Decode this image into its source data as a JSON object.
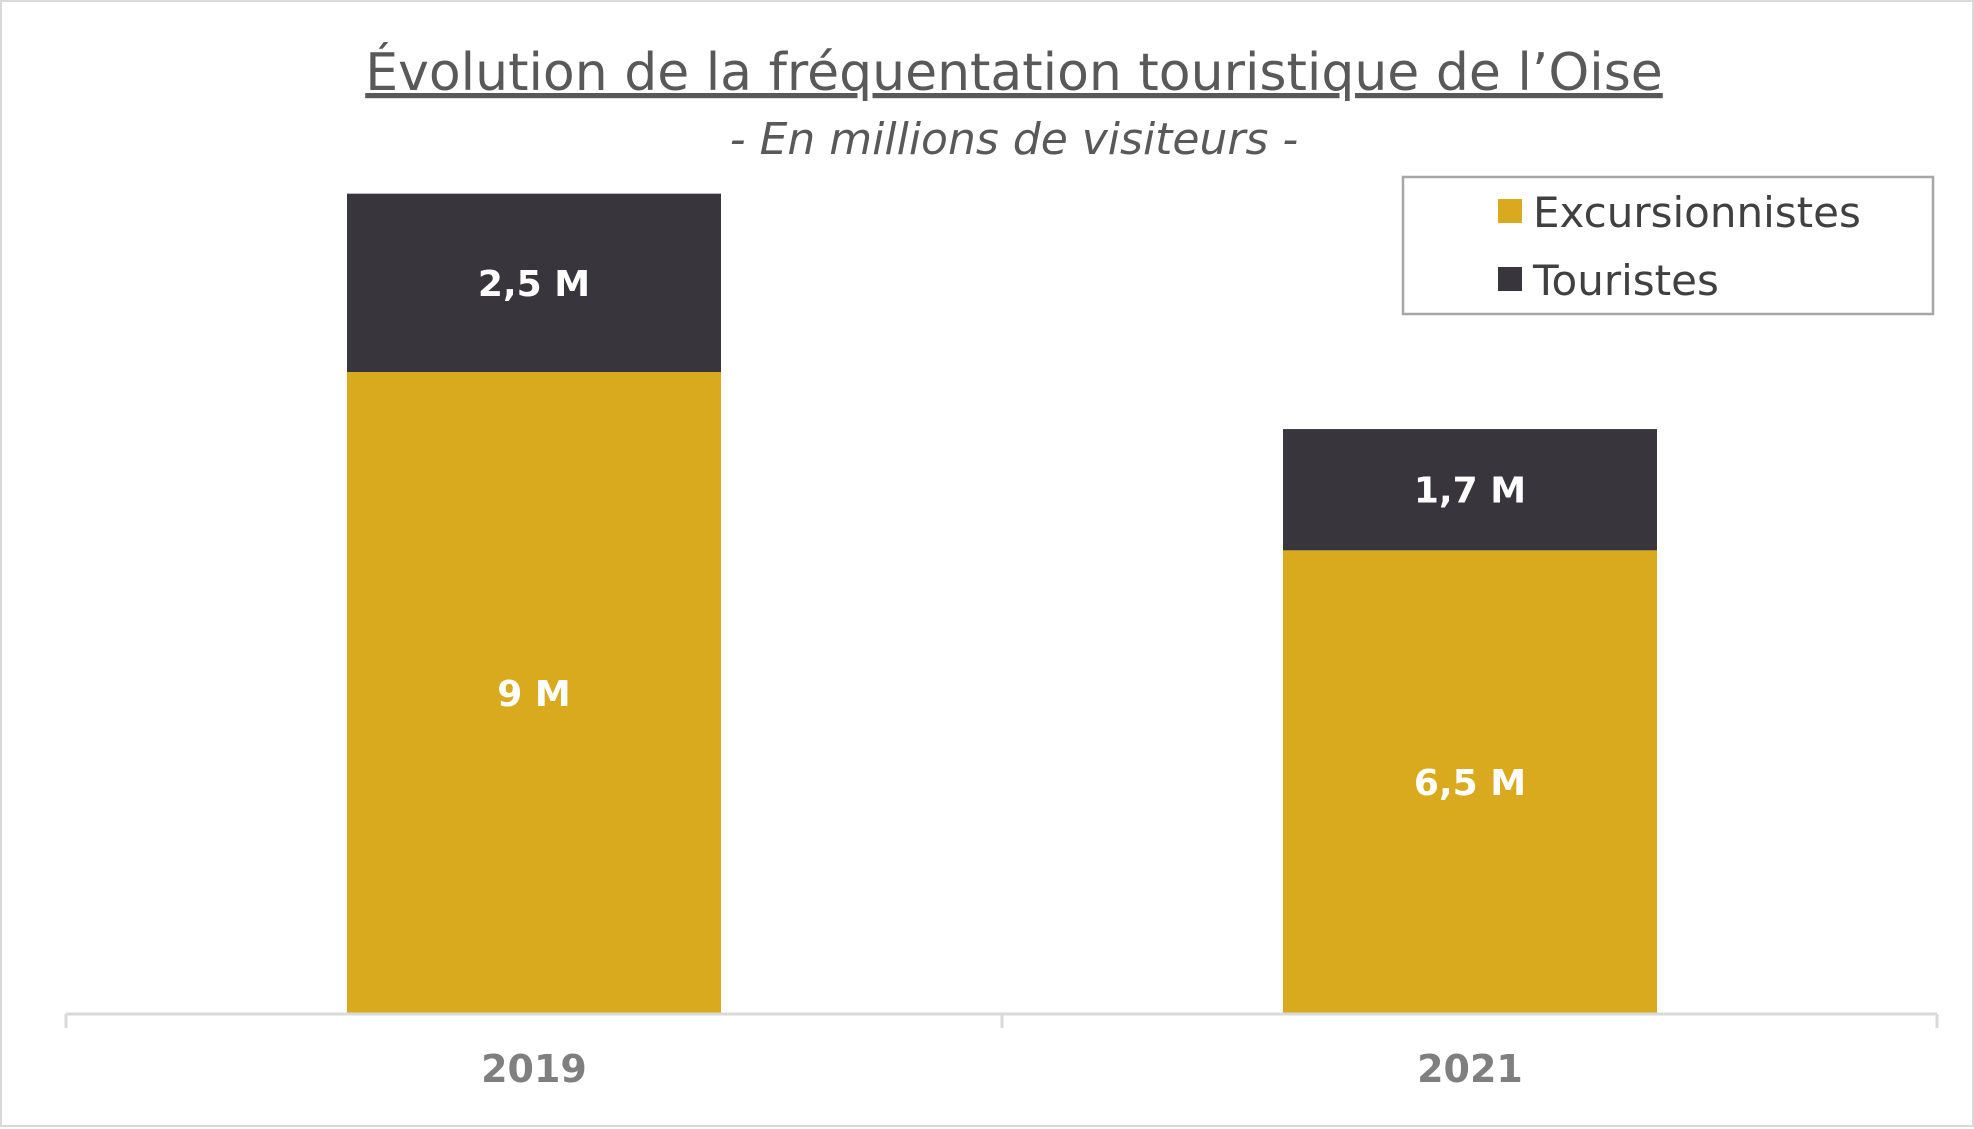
{
  "chart_data": {
    "type": "bar",
    "stacked": true,
    "title": "Évolution de la fréquentation touristique de l’Oise",
    "subtitle": "- En millions de visiteurs -",
    "xlabel": "",
    "ylabel": "",
    "categories": [
      "2019",
      "2021"
    ],
    "series": [
      {
        "name": "Excursionnistes",
        "color": "#DAAA1E",
        "values": [
          9,
          6.5
        ],
        "labels": [
          "9 M",
          "6,5 M"
        ]
      },
      {
        "name": "Touristes",
        "color": "#38363C",
        "values": [
          2.5,
          1.7
        ],
        "labels": [
          "2,5 M",
          "1,7 M"
        ]
      }
    ],
    "ylim": [
      0,
      12
    ],
    "grid": false,
    "legend_position": "top-right"
  },
  "legend": {
    "order": [
      0,
      1
    ]
  }
}
